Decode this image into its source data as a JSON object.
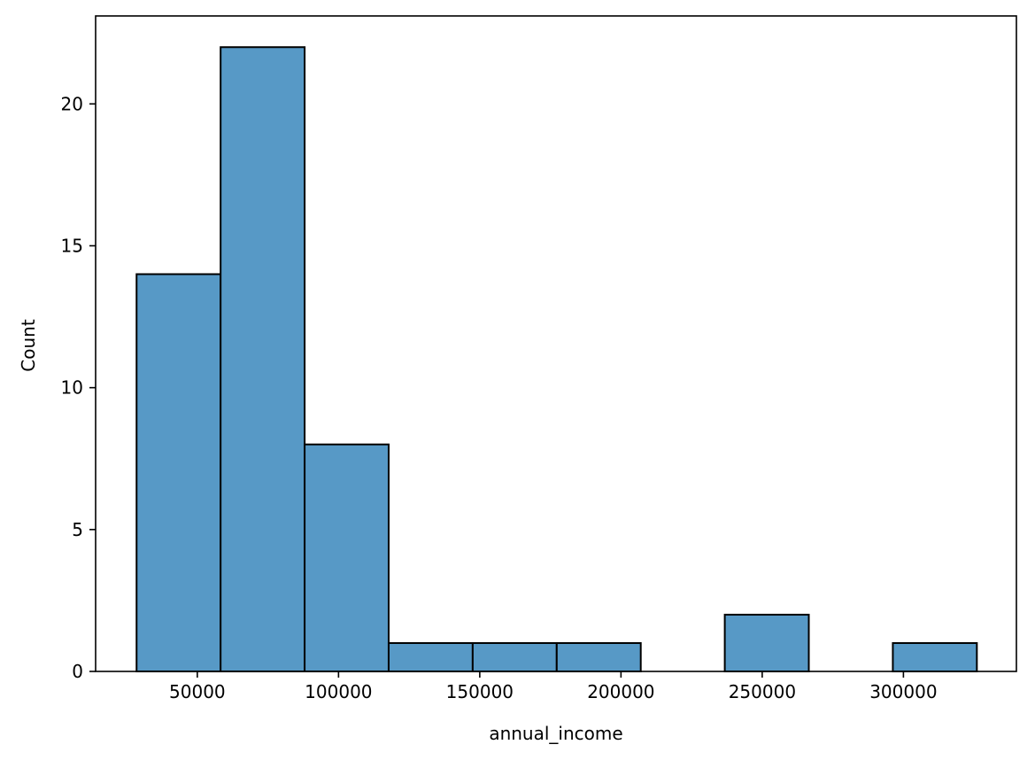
{
  "chart_data": {
    "type": "bar",
    "subtype": "histogram",
    "title": "",
    "xlabel": "annual_income",
    "ylabel": "Count",
    "xlim": [
      14000,
      340000
    ],
    "ylim": [
      0,
      23.1
    ],
    "grid": false,
    "bar_color": "#5799c6",
    "edge_color": "#000000",
    "bins": [
      {
        "x0": 28500,
        "x1": 58250,
        "count": 14
      },
      {
        "x0": 58250,
        "x1": 88000,
        "count": 22
      },
      {
        "x0": 88000,
        "x1": 117750,
        "count": 8
      },
      {
        "x0": 117750,
        "x1": 147500,
        "count": 1
      },
      {
        "x0": 147500,
        "x1": 177250,
        "count": 1
      },
      {
        "x0": 177250,
        "x1": 207000,
        "count": 1
      },
      {
        "x0": 207000,
        "x1": 236750,
        "count": 0
      },
      {
        "x0": 236750,
        "x1": 266500,
        "count": 2
      },
      {
        "x0": 266500,
        "x1": 296250,
        "count": 0
      },
      {
        "x0": 296250,
        "x1": 326000,
        "count": 1
      }
    ],
    "x_ticks": [
      {
        "value": 50000,
        "label": "50000"
      },
      {
        "value": 100000,
        "label": "100000"
      },
      {
        "value": 150000,
        "label": "150000"
      },
      {
        "value": 200000,
        "label": "200000"
      },
      {
        "value": 250000,
        "label": "250000"
      },
      {
        "value": 300000,
        "label": "300000"
      }
    ],
    "y_ticks": [
      {
        "value": 0,
        "label": "0"
      },
      {
        "value": 5,
        "label": "5"
      },
      {
        "value": 10,
        "label": "10"
      },
      {
        "value": 15,
        "label": "15"
      },
      {
        "value": 20,
        "label": "20"
      }
    ]
  }
}
